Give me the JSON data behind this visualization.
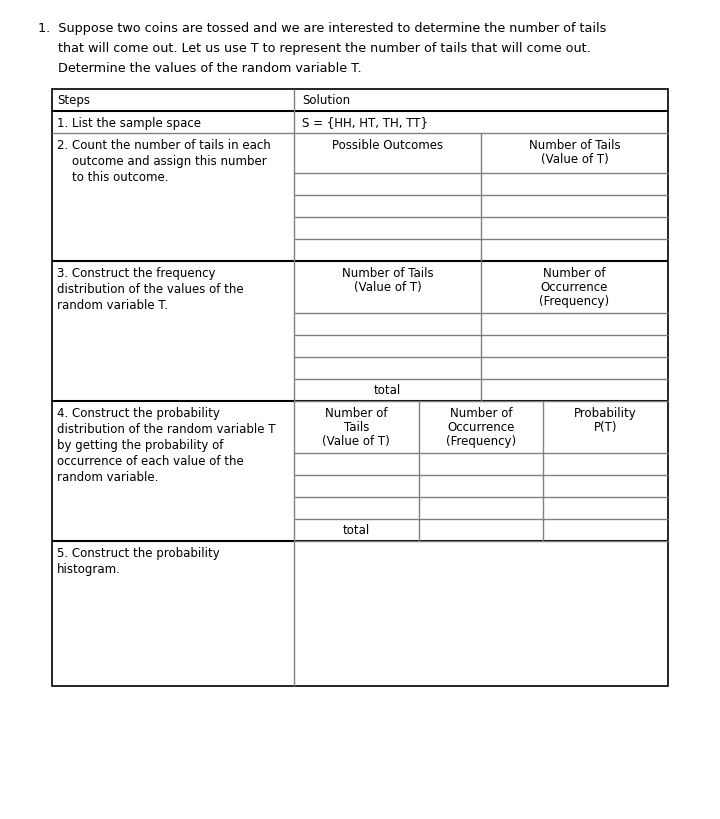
{
  "title_lines": [
    "1.  Suppose two coins are tossed and we are interested to determine the number of tails",
    "     that will come out. Let us use T to represent the number of tails that will come out.",
    "     Determine the values of the random variable T."
  ],
  "steps_label": "Steps",
  "solution_label": "Solution",
  "step1_left": "1. List the sample space",
  "step1_right": "S = {HH, HT, TH, TT}",
  "step2_left": [
    "2. Count the number of tails in each",
    "    outcome and assign this number",
    "    to this outcome."
  ],
  "step2_col1": "Possible Outcomes",
  "step2_col2_line1": "Number of Tails",
  "step2_col2_line2": "(Value of T)",
  "step3_left": [
    "3. Construct the frequency",
    "distribution of the values of the",
    "random variable T."
  ],
  "step3_col1_line1": "Number of Tails",
  "step3_col1_line2": "(Value of T)",
  "step3_col2_line1": "Number of",
  "step3_col2_line2": "Occurrence",
  "step3_col2_line3": "(Frequency)",
  "step3_total": "total",
  "step4_left": [
    "4. Construct the probability",
    "distribution of the random variable T",
    "by getting the probability of",
    "occurrence of each value of the",
    "random variable."
  ],
  "step4_col1_line1": "Number of",
  "step4_col1_line2": "Tails",
  "step4_col1_line3": "(Value of T)",
  "step4_col2_line1": "Number of",
  "step4_col2_line2": "Occurrence",
  "step4_col2_line3": "(Frequency)",
  "step4_col3_line1": "Probability",
  "step4_col3_line2": "P(T)",
  "step4_total": "total",
  "step5_left": [
    "5. Construct the probability",
    "histogram."
  ],
  "bg_color": "#ffffff",
  "text_color": "#000000",
  "border_color": "#000000",
  "inner_line_color": "#808080",
  "font_size": 8.5,
  "title_font_size": 9.2
}
